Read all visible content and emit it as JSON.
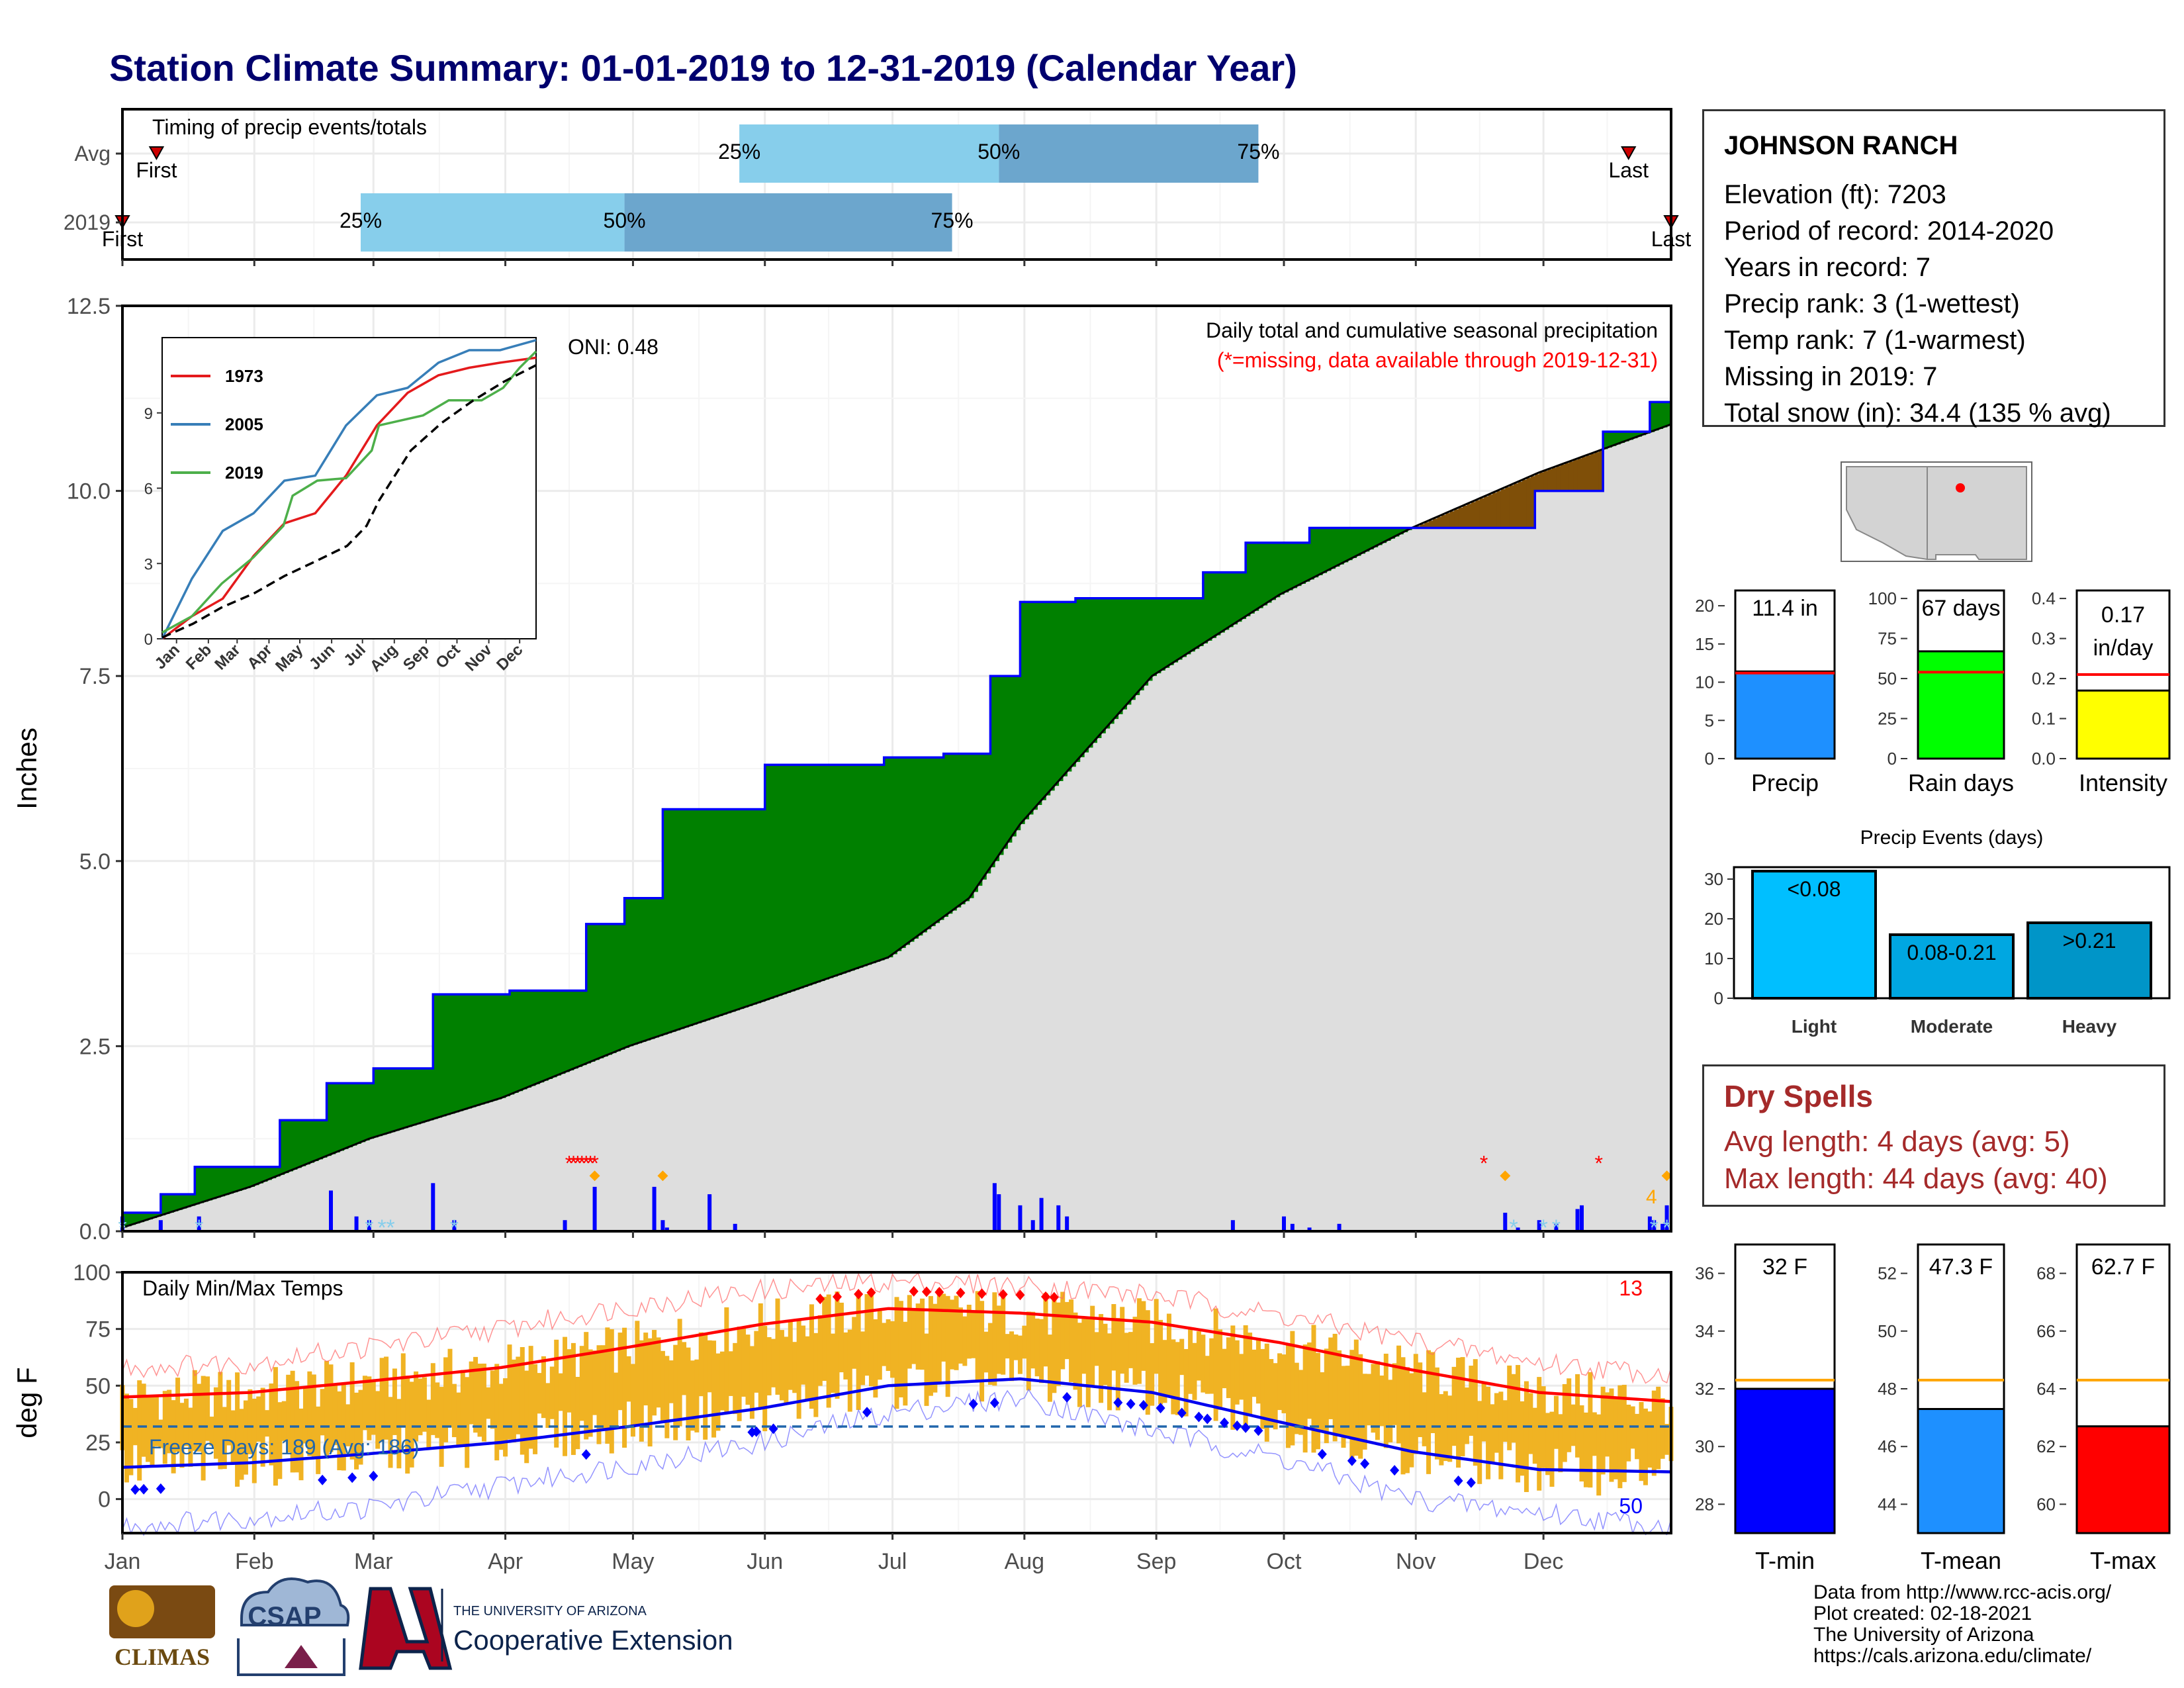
{
  "title": "Station Climate Summary: 01-01-2019 to 12-31-2019 (Calendar Year)",
  "station": {
    "name": "JOHNSON RANCH",
    "rows": [
      "Elevation (ft): 7203",
      "Period of record: 2014-2020",
      "Years in record: 7",
      "Precip rank: 3 (1-wettest)",
      "Temp rank: 7 (1-warmest)",
      "Missing in 2019: 7",
      "Total snow (in): 34.4 (135 % avg)"
    ]
  },
  "dry_spells": {
    "heading": "Dry Spells",
    "avg_length": "Avg length: 4 days (avg: 5)",
    "max_length": "Max length: 44 days (avg: 40)"
  },
  "source": {
    "line1": "Data from http://www.rcc-acis.org/",
    "line2": "Plot created: 02-18-2021",
    "line3": "The University of Arizona",
    "line4": "https://cals.arizona.edu/climate/"
  },
  "logos": {
    "climas": "CLIMAS",
    "csap": "CSAP",
    "ua_small": "THE UNIVERSITY OF ARIZONA",
    "ua_big": "Cooperative Extension"
  },
  "colors": {
    "title": "#00006e",
    "above_normal": "#008000",
    "below_normal": "#7f4f08",
    "normal_area": "#dedede",
    "daily_bars": "#0000ff",
    "temp_bars": "#f0b323",
    "tmax_line": "#ff0000",
    "tmin_line": "#0000ee",
    "freeze_line": "#2166ac",
    "dry_spells": "#a52a2a"
  },
  "chart_data": [
    {
      "type": "timing",
      "title": "Timing of precip events/totals",
      "rows": [
        {
          "label": "Avg",
          "first": "Jan 9",
          "q25": "May 26",
          "q50": "Jul 26",
          "q75": "Sep 25",
          "last": "Dec 21",
          "first_label": "First",
          "last_label": "Last",
          "q25_label": "25%",
          "q50_label": "50%",
          "q75_label": "75%"
        },
        {
          "label": "2019",
          "first": "Jan 1",
          "q25": "Feb 26",
          "q50": "Apr 29",
          "q75": "Jul 15",
          "last": "Dec 31",
          "first_label": "First",
          "last_label": "Last",
          "q25_label": "25%",
          "q50_label": "50%",
          "q75_label": "75%"
        }
      ]
    },
    {
      "type": "area",
      "title": "Daily total and cumulative seasonal precipitation",
      "subtitle": "(*=missing, data available through 2019-12-31)",
      "oni": "ONI: 0.48",
      "ylabel": "Inches",
      "ylim": [
        0,
        12.5
      ],
      "yticks": [
        "0.0",
        "2.5",
        "5.0",
        "7.5",
        "10.0",
        "12.5"
      ],
      "xticks": [
        "Jan",
        "Feb",
        "Mar",
        "Apr",
        "May",
        "Jun",
        "Jul",
        "Aug",
        "Sep",
        "Oct",
        "Nov",
        "Dec"
      ],
      "cum_2019": [
        [
          1,
          0.25
        ],
        [
          10,
          0.5
        ],
        [
          18,
          0.87
        ],
        [
          38,
          1.5
        ],
        [
          49,
          2.0
        ],
        [
          60,
          2.2
        ],
        [
          74,
          3.2
        ],
        [
          92,
          3.25
        ],
        [
          110,
          4.15
        ],
        [
          119,
          4.5
        ],
        [
          128,
          5.7
        ],
        [
          152,
          6.3
        ],
        [
          180,
          6.4
        ],
        [
          194,
          6.45
        ],
        [
          205,
          7.5
        ],
        [
          212,
          8.5
        ],
        [
          225,
          8.55
        ],
        [
          255,
          8.9
        ],
        [
          265,
          9.3
        ],
        [
          280,
          9.5
        ],
        [
          312,
          9.5
        ],
        [
          333,
          10.0
        ],
        [
          349,
          10.8
        ],
        [
          360,
          11.2
        ],
        [
          365,
          11.45
        ]
      ],
      "cum_avg": [
        [
          1,
          0.05
        ],
        [
          31,
          0.6
        ],
        [
          59,
          1.25
        ],
        [
          90,
          1.8
        ],
        [
          120,
          2.5
        ],
        [
          151,
          3.1
        ],
        [
          181,
          3.7
        ],
        [
          200,
          4.5
        ],
        [
          212,
          5.5
        ],
        [
          243,
          7.5
        ],
        [
          273,
          8.6
        ],
        [
          304,
          9.5
        ],
        [
          334,
          10.25
        ],
        [
          365,
          10.9
        ]
      ],
      "daily_precip": [
        [
          1,
          0.2
        ],
        [
          10,
          0.15
        ],
        [
          19,
          0.2
        ],
        [
          50,
          0.55
        ],
        [
          56,
          0.2
        ],
        [
          59,
          0.15
        ],
        [
          74,
          0.65
        ],
        [
          79,
          0.15
        ],
        [
          105,
          0.15
        ],
        [
          112,
          0.6
        ],
        [
          126,
          0.6
        ],
        [
          128,
          0.15
        ],
        [
          129,
          0.05
        ],
        [
          139,
          0.5
        ],
        [
          145,
          0.1
        ],
        [
          206,
          0.65
        ],
        [
          207,
          0.5
        ],
        [
          212,
          0.35
        ],
        [
          215,
          0.15
        ],
        [
          217,
          0.45
        ],
        [
          221,
          0.35
        ],
        [
          223,
          0.2
        ],
        [
          262,
          0.15
        ],
        [
          274,
          0.2
        ],
        [
          276,
          0.1
        ],
        [
          280,
          0.05
        ],
        [
          287,
          0.1
        ],
        [
          326,
          0.25
        ],
        [
          329,
          0.05
        ],
        [
          334,
          0.15
        ],
        [
          338,
          0.1
        ],
        [
          343,
          0.3
        ],
        [
          344,
          0.35
        ],
        [
          360,
          0.2
        ],
        [
          361,
          0.15
        ],
        [
          363,
          0.1
        ],
        [
          364,
          0.35
        ]
      ],
      "missing_label": "*",
      "snow_count_label": "4",
      "inset": {
        "type": "line",
        "yticks": [
          "0",
          "3",
          "6",
          "9"
        ],
        "xticks": [
          "Jan",
          "Feb",
          "Mar",
          "Apr",
          "May",
          "Jun",
          "Jul",
          "Aug",
          "Sep",
          "Oct",
          "Nov",
          "Dec"
        ],
        "ylim": [
          0,
          12
        ],
        "series": [
          {
            "name": "1973",
            "color": "#e41a1c",
            "values": [
              [
                1,
                0
              ],
              [
                30,
                0.9
              ],
              [
                60,
                1.6
              ],
              [
                90,
                3.3
              ],
              [
                120,
                4.6
              ],
              [
                150,
                5.0
              ],
              [
                180,
                6.5
              ],
              [
                210,
                8.5
              ],
              [
                240,
                9.8
              ],
              [
                270,
                10.5
              ],
              [
                300,
                10.8
              ],
              [
                330,
                11.0
              ],
              [
                365,
                11.2
              ]
            ]
          },
          {
            "name": "2005",
            "color": "#377eb8",
            "values": [
              [
                1,
                0
              ],
              [
                30,
                2.4
              ],
              [
                60,
                4.3
              ],
              [
                90,
                5.0
              ],
              [
                120,
                6.3
              ],
              [
                150,
                6.5
              ],
              [
                180,
                8.5
              ],
              [
                210,
                9.7
              ],
              [
                240,
                10.0
              ],
              [
                270,
                11.0
              ],
              [
                300,
                11.5
              ],
              [
                330,
                11.5
              ],
              [
                365,
                11.9
              ]
            ]
          },
          {
            "name": "2019",
            "color": "#4daf4a",
            "values": [
              [
                1,
                0.25
              ],
              [
                30,
                0.9
              ],
              [
                59,
                2.2
              ],
              [
                90,
                3.25
              ],
              [
                119,
                4.5
              ],
              [
                128,
                5.7
              ],
              [
                152,
                6.3
              ],
              [
                180,
                6.4
              ],
              [
                205,
                7.5
              ],
              [
                212,
                8.5
              ],
              [
                255,
                8.9
              ],
              [
                280,
                9.5
              ],
              [
                312,
                9.5
              ],
              [
                333,
                10.0
              ],
              [
                349,
                10.8
              ],
              [
                365,
                11.45
              ]
            ]
          },
          {
            "name": "avg",
            "dashed": true,
            "color": "#000000",
            "values": [
              [
                1,
                0.05
              ],
              [
                31,
                0.6
              ],
              [
                59,
                1.25
              ],
              [
                90,
                1.8
              ],
              [
                120,
                2.5
              ],
              [
                151,
                3.1
              ],
              [
                181,
                3.7
              ],
              [
                200,
                4.5
              ],
              [
                212,
                5.5
              ],
              [
                243,
                7.5
              ],
              [
                273,
                8.6
              ],
              [
                304,
                9.5
              ],
              [
                334,
                10.25
              ],
              [
                365,
                10.9
              ]
            ]
          }
        ]
      }
    },
    {
      "type": "line",
      "title": "Daily Min/Max Temps",
      "ylabel": "deg F",
      "ylim": [
        -15,
        100
      ],
      "yticks": [
        "0",
        "25",
        "50",
        "75",
        "100"
      ],
      "xticks": [
        "Jan",
        "Feb",
        "Mar",
        "Apr",
        "May",
        "Jun",
        "Jul",
        "Aug",
        "Sep",
        "Oct",
        "Nov",
        "Dec"
      ],
      "freeze_label": "Freeze Days: 189 (Avg: 186)",
      "freeze_temp": 32,
      "record_high_count": "13",
      "record_low_count": "50",
      "normal_max": [
        [
          1,
          45
        ],
        [
          31,
          47
        ],
        [
          59,
          52
        ],
        [
          90,
          58
        ],
        [
          120,
          67
        ],
        [
          151,
          77
        ],
        [
          181,
          84
        ],
        [
          212,
          82
        ],
        [
          243,
          78
        ],
        [
          273,
          69
        ],
        [
          304,
          57
        ],
        [
          334,
          47
        ],
        [
          365,
          43
        ]
      ],
      "normal_min": [
        [
          1,
          14
        ],
        [
          31,
          16
        ],
        [
          59,
          20
        ],
        [
          90,
          25
        ],
        [
          120,
          32
        ],
        [
          151,
          40
        ],
        [
          181,
          50
        ],
        [
          212,
          53
        ],
        [
          243,
          47
        ],
        [
          273,
          34
        ],
        [
          304,
          21
        ],
        [
          334,
          13
        ],
        [
          365,
          12
        ]
      ],
      "record_max": [
        [
          1,
          58
        ],
        [
          31,
          60
        ],
        [
          59,
          67
        ],
        [
          90,
          75
        ],
        [
          120,
          85
        ],
        [
          151,
          92
        ],
        [
          181,
          96
        ],
        [
          212,
          94
        ],
        [
          243,
          90
        ],
        [
          273,
          81
        ],
        [
          304,
          70
        ],
        [
          334,
          60
        ],
        [
          365,
          55
        ]
      ],
      "record_min": [
        [
          1,
          -12
        ],
        [
          31,
          -8
        ],
        [
          59,
          -4
        ],
        [
          90,
          6
        ],
        [
          120,
          15
        ],
        [
          151,
          25
        ],
        [
          181,
          38
        ],
        [
          212,
          45
        ],
        [
          243,
          30
        ],
        [
          273,
          18
        ],
        [
          304,
          0
        ],
        [
          334,
          -6
        ],
        [
          365,
          -12
        ]
      ]
    },
    {
      "type": "bar",
      "categories": [
        "Precip"
      ],
      "values": [
        11.4
      ],
      "avg": 11.2,
      "ylim": [
        0,
        22
      ],
      "yticks": [
        "0",
        "5",
        "10",
        "15",
        "20"
      ],
      "label": "11.4 in",
      "color": "#1e90ff"
    },
    {
      "type": "bar",
      "categories": [
        "Rain days"
      ],
      "values": [
        67
      ],
      "avg": 54,
      "ylim": [
        0,
        105
      ],
      "yticks": [
        "0",
        "25",
        "50",
        "75",
        "100"
      ],
      "label": "67 days",
      "color": "#00ff00"
    },
    {
      "type": "bar",
      "categories": [
        "Intensity"
      ],
      "values": [
        0.17
      ],
      "avg": 0.21,
      "ylim": [
        0,
        0.42
      ],
      "yticks": [
        "0.0",
        "0.1",
        "0.2",
        "0.3",
        "0.4"
      ],
      "label": "0.17",
      "label2": "in/day",
      "color": "#ffff00"
    },
    {
      "type": "bar",
      "title": "Precip Events (days)",
      "categories": [
        "Light",
        "Moderate",
        "Heavy"
      ],
      "values": [
        32,
        16,
        19
      ],
      "bar_labels": [
        "<0.08",
        "0.08-0.21",
        ">0.21"
      ],
      "colors": [
        "#00bfff",
        "#00a7e1",
        "#0095c8"
      ],
      "ylim": [
        0,
        33
      ],
      "yticks": [
        "0",
        "10",
        "20",
        "30"
      ]
    },
    {
      "type": "bar",
      "categories": [
        "T-min"
      ],
      "values": [
        32
      ],
      "avg": 32.3,
      "ylim": [
        27,
        37
      ],
      "yticks": [
        "28",
        "30",
        "32",
        "34",
        "36"
      ],
      "label": "32 F",
      "color": "#0000ff"
    },
    {
      "type": "bar",
      "categories": [
        "T-mean"
      ],
      "values": [
        47.3
      ],
      "avg": 48.3,
      "ylim": [
        43,
        53
      ],
      "yticks": [
        "44",
        "46",
        "48",
        "50",
        "52"
      ],
      "label": "47.3 F",
      "color": "#1e90ff"
    },
    {
      "type": "bar",
      "categories": [
        "T-max"
      ],
      "values": [
        62.7
      ],
      "avg": 64.3,
      "ylim": [
        59,
        69
      ],
      "yticks": [
        "60",
        "62",
        "64",
        "66",
        "68"
      ],
      "label": "62.7 F",
      "color": "#ff0000"
    }
  ]
}
